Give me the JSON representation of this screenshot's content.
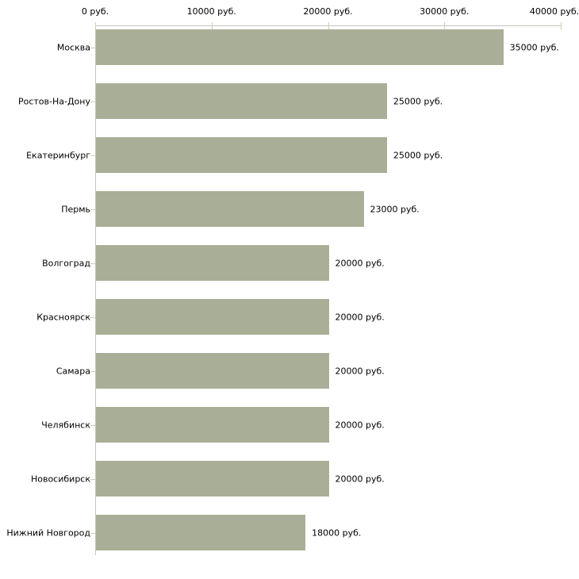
{
  "chart_data": {
    "type": "bar",
    "orientation": "horizontal",
    "title": "",
    "categories": [
      "Москва",
      "Ростов-На-Дону",
      "Екатеринбург",
      "Пермь",
      "Волгоград",
      "Красноярск",
      "Самара",
      "Челябинск",
      "Новосибирск",
      "Нижний Новгород"
    ],
    "values": [
      35000,
      25000,
      25000,
      23000,
      20000,
      20000,
      20000,
      20000,
      20000,
      18000
    ],
    "value_labels": [
      "35000 руб.",
      "25000 руб.",
      "25000 руб.",
      "23000 руб.",
      "20000 руб.",
      "20000 руб.",
      "20000 руб.",
      "20000 руб.",
      "20000 руб.",
      "18000 руб."
    ],
    "x_axis": {
      "position": "top",
      "range": [
        0,
        40000
      ],
      "ticks": [
        0,
        10000,
        20000,
        30000,
        40000
      ],
      "tick_labels": [
        "0 руб.",
        "10000 руб.",
        "20000 руб.",
        "30000 руб.",
        "40000 руб."
      ]
    },
    "ylabel": "",
    "xlabel": "",
    "grid": false,
    "legend": false,
    "colors": {
      "bar": "#a9af96",
      "axis_line": "#c5c6bd",
      "tick_mark": "#cdd1ac",
      "text": "#000000",
      "background": "#ffffff"
    }
  }
}
